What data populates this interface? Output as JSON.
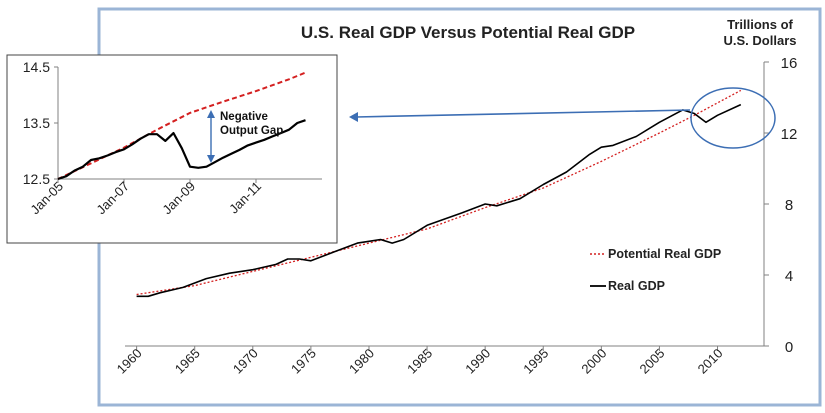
{
  "colors": {
    "frame": "#9bb5d6",
    "real": "#000000",
    "potential": "#d42020",
    "arrow": "#3c6eb4",
    "axis": "#808080"
  },
  "chart_data": [
    {
      "id": "main",
      "type": "line",
      "title": "U.S. Real GDP Versus Potential Real GDP",
      "unit_label_line1": "Trillions of",
      "unit_label_line2": "U.S. Dollars",
      "x_ticks": [
        1960,
        1965,
        1970,
        1975,
        1980,
        1985,
        1990,
        1995,
        2000,
        2005,
        2010
      ],
      "y_ticks": [
        0,
        4,
        8,
        12,
        16
      ],
      "xlim": [
        1959,
        2014
      ],
      "ylim": [
        0,
        16
      ],
      "legend": [
        {
          "name": "Potential Real GDP",
          "style": "dotted"
        },
        {
          "name": "Real GDP",
          "style": "solid"
        }
      ],
      "series": [
        {
          "name": "Potential Real GDP",
          "x": [
            1960,
            1965,
            1970,
            1975,
            1980,
            1985,
            1990,
            1995,
            2000,
            2005,
            2008,
            2012
          ],
          "values": [
            2.9,
            3.4,
            4.2,
            5.0,
            5.8,
            6.6,
            7.8,
            8.9,
            10.4,
            12.0,
            13.0,
            14.4
          ]
        },
        {
          "name": "Real GDP",
          "x": [
            1960,
            1961,
            1962,
            1964,
            1966,
            1968,
            1970,
            1972,
            1973,
            1974,
            1975,
            1977,
            1979,
            1980,
            1981,
            1982,
            1983,
            1985,
            1988,
            1990,
            1991,
            1993,
            1995,
            1997,
            1999,
            2000,
            2001,
            2003,
            2005,
            2007,
            2008,
            2009,
            2010,
            2012
          ],
          "values": [
            2.8,
            2.8,
            3.0,
            3.3,
            3.8,
            4.1,
            4.3,
            4.6,
            4.9,
            4.9,
            4.8,
            5.3,
            5.8,
            5.9,
            6.0,
            5.8,
            6.0,
            6.8,
            7.5,
            8.0,
            7.9,
            8.3,
            9.1,
            9.8,
            10.8,
            11.2,
            11.3,
            11.8,
            12.6,
            13.3,
            13.1,
            12.6,
            13.0,
            13.6
          ]
        }
      ]
    },
    {
      "id": "inset",
      "type": "line",
      "x_ticks": [
        "Jan-05",
        "Jan-07",
        "Jan-09",
        "Jan-11"
      ],
      "x_tick_values": [
        0,
        2,
        4,
        6
      ],
      "y_ticks": [
        12.5,
        13.5,
        14.5
      ],
      "xlim": [
        0,
        8
      ],
      "ylim": [
        12.5,
        14.5
      ],
      "annotation_line1": "Negative",
      "annotation_line2": "Output Gap",
      "series": [
        {
          "name": "Potential Real GDP",
          "x": [
            0,
            1,
            2,
            3,
            4,
            5,
            6,
            7,
            7.5
          ],
          "values": [
            12.5,
            12.78,
            13.06,
            13.38,
            13.68,
            13.88,
            14.07,
            14.28,
            14.4
          ]
        },
        {
          "name": "Real GDP",
          "x": [
            0,
            0.25,
            0.5,
            0.75,
            1,
            1.25,
            1.5,
            1.75,
            2,
            2.25,
            2.5,
            2.75,
            3,
            3.25,
            3.5,
            3.75,
            4,
            4.25,
            4.5,
            4.75,
            5,
            5.25,
            5.5,
            5.75,
            6,
            6.25,
            6.5,
            6.75,
            7,
            7.25,
            7.5
          ],
          "values": [
            12.5,
            12.55,
            12.65,
            12.72,
            12.84,
            12.87,
            12.92,
            12.98,
            13.03,
            13.12,
            13.22,
            13.3,
            13.3,
            13.18,
            13.32,
            13.05,
            12.72,
            12.7,
            12.72,
            12.8,
            12.88,
            12.95,
            13.02,
            13.1,
            13.15,
            13.2,
            13.26,
            13.32,
            13.38,
            13.5,
            13.55
          ]
        }
      ]
    }
  ]
}
